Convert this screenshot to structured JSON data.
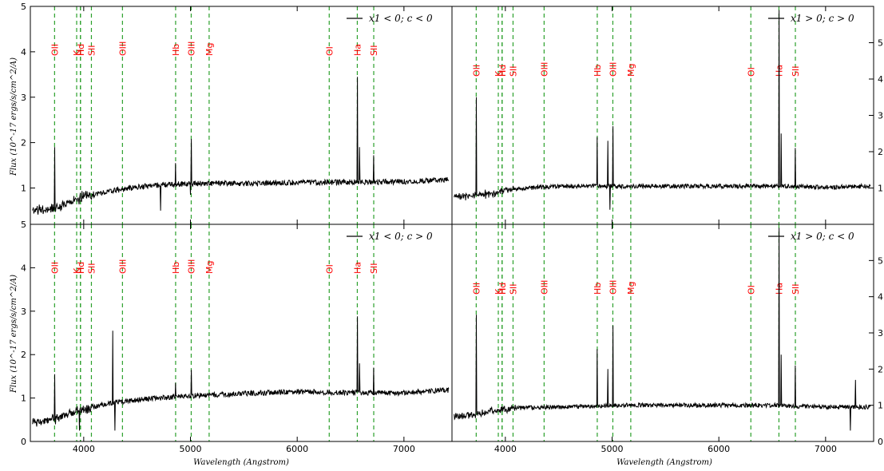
{
  "chart_data": {
    "type": "line",
    "xlabel": "Wavelength (Angstrom)",
    "ylabel": "Flux (10^-17 ergs/s/cm^2/A)",
    "xlim": [
      3500,
      7450
    ],
    "x_ticks": [
      "4000",
      "5000",
      "6000",
      "7000"
    ],
    "left_y_ticks": [
      "0",
      "1",
      "2",
      "3",
      "4",
      "5"
    ],
    "right_y_ticks": [
      "1",
      "2",
      "3",
      "4",
      "5"
    ],
    "emission_lines": [
      {
        "name": "OII",
        "wavelength": 3727
      },
      {
        "name": "K",
        "wavelength": 3934
      },
      {
        "name": "H",
        "wavelength": 3969
      },
      {
        "name": "Hd",
        "wavelength": 3970
      },
      {
        "name": "SII",
        "wavelength": 4072
      },
      {
        "name": "OIII",
        "wavelength": 4363
      },
      {
        "name": "Hb",
        "wavelength": 4861
      },
      {
        "name": "OIII",
        "wavelength": 5007
      },
      {
        "name": "Mg",
        "wavelength": 5175
      },
      {
        "name": "OI",
        "wavelength": 6300
      },
      {
        "name": "Ha",
        "wavelength": 6563
      },
      {
        "name": "SII",
        "wavelength": 6717
      }
    ],
    "panels": [
      {
        "legend": "x1 < 0; c < 0",
        "ylim": [
          0.2,
          5
        ],
        "continuum": [
          [
            3520,
            0.5
          ],
          [
            3700,
            0.55
          ],
          [
            3900,
            0.7
          ],
          [
            4000,
            0.82
          ],
          [
            4300,
            0.95
          ],
          [
            4600,
            1.05
          ],
          [
            5000,
            1.1
          ],
          [
            5500,
            1.1
          ],
          [
            6000,
            1.12
          ],
          [
            6500,
            1.13
          ],
          [
            7000,
            1.14
          ],
          [
            7400,
            1.18
          ]
        ],
        "spikes": [
          [
            3727,
            1.9
          ],
          [
            4861,
            1.55
          ],
          [
            5007,
            2.08
          ],
          [
            6563,
            3.45
          ],
          [
            6583,
            1.9
          ],
          [
            6717,
            1.72
          ]
        ],
        "dips": [
          [
            4720,
            0.5
          ],
          [
            5000,
            0.85
          ]
        ]
      },
      {
        "legend": "x1 > 0; c > 0",
        "ylim": [
          0,
          6
        ],
        "continuum": [
          [
            3520,
            0.75
          ],
          [
            3700,
            0.8
          ],
          [
            3900,
            0.85
          ],
          [
            4000,
            0.95
          ],
          [
            4300,
            1.02
          ],
          [
            4600,
            1.05
          ],
          [
            5000,
            1.05
          ],
          [
            5500,
            1.05
          ],
          [
            6000,
            1.05
          ],
          [
            6500,
            1.05
          ],
          [
            7000,
            1.02
          ],
          [
            7400,
            1.05
          ]
        ],
        "spikes": [
          [
            3727,
            3.5
          ],
          [
            4861,
            2.4
          ],
          [
            4960,
            2.3
          ],
          [
            5007,
            2.7
          ],
          [
            6563,
            5.9
          ],
          [
            6583,
            2.5
          ],
          [
            6717,
            2.1
          ]
        ],
        "dips": [
          [
            4980,
            0.4
          ]
        ]
      },
      {
        "legend": "x1 < 0; c > 0",
        "ylim": [
          0,
          5
        ],
        "continuum": [
          [
            3520,
            0.45
          ],
          [
            3700,
            0.5
          ],
          [
            3900,
            0.65
          ],
          [
            4000,
            0.75
          ],
          [
            4300,
            0.9
          ],
          [
            4600,
            0.98
          ],
          [
            5000,
            1.05
          ],
          [
            5500,
            1.1
          ],
          [
            6000,
            1.15
          ],
          [
            6500,
            1.12
          ],
          [
            7000,
            1.12
          ],
          [
            7400,
            1.18
          ]
        ],
        "spikes": [
          [
            3727,
            1.55
          ],
          [
            4270,
            2.55
          ],
          [
            4861,
            1.35
          ],
          [
            5007,
            1.65
          ],
          [
            6563,
            2.88
          ],
          [
            6583,
            1.8
          ],
          [
            6717,
            1.7
          ]
        ],
        "dips": [
          [
            4290,
            0.25
          ],
          [
            3960,
            0.25
          ]
        ]
      },
      {
        "legend": "x1 > 0; c < 0",
        "ylim": [
          0,
          6
        ],
        "continuum": [
          [
            3520,
            0.7
          ],
          [
            3700,
            0.75
          ],
          [
            3900,
            0.85
          ],
          [
            4000,
            0.9
          ],
          [
            4300,
            0.95
          ],
          [
            4600,
            0.95
          ],
          [
            5000,
            1.0
          ],
          [
            5500,
            1.0
          ],
          [
            6000,
            1.0
          ],
          [
            6500,
            1.0
          ],
          [
            7000,
            0.95
          ],
          [
            7400,
            0.95
          ]
        ],
        "spikes": [
          [
            3727,
            3.5
          ],
          [
            4861,
            2.55
          ],
          [
            4960,
            2.0
          ],
          [
            5007,
            3.2
          ],
          [
            6563,
            5.9
          ],
          [
            6583,
            2.4
          ],
          [
            6717,
            2.1
          ],
          [
            7280,
            1.7
          ]
        ],
        "dips": [
          [
            7230,
            0.3
          ]
        ]
      }
    ]
  },
  "colors": {
    "spectrum": "#000000",
    "line_marker": "#2ca02c",
    "line_label": "#ff0000"
  }
}
